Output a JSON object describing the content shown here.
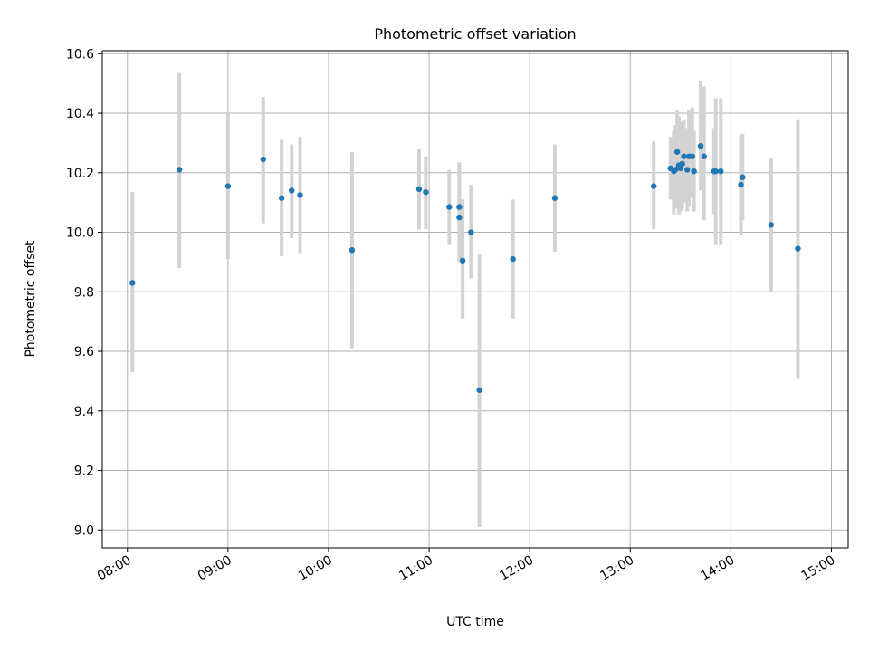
{
  "chart_data": {
    "type": "scatter",
    "title": "Photometric offset variation",
    "xlabel": "UTC time",
    "ylabel": "Photometric offset",
    "grid": true,
    "xlim": [
      465,
      910
    ],
    "ylim": [
      8.94,
      10.61
    ],
    "x_tick_minutes": [
      480,
      540,
      600,
      660,
      720,
      780,
      840,
      900
    ],
    "x_tick_labels": [
      "08:00",
      "09:00",
      "10:00",
      "11:00",
      "12:00",
      "13:00",
      "14:00",
      "15:00"
    ],
    "y_ticks": [
      9.0,
      9.2,
      9.4,
      9.6,
      9.8,
      10.0,
      10.2,
      10.4,
      10.6
    ],
    "y_tick_labels": [
      "9.0",
      "9.2",
      "9.4",
      "9.6",
      "9.8",
      "10.0",
      "10.2",
      "10.4",
      "10.6"
    ],
    "point_color": "#1f77b4",
    "errorbar_color": "#d3d3d3",
    "series": [
      {
        "name": "offset",
        "x_minutes": [
          483,
          511,
          540,
          561,
          572,
          578,
          583,
          614,
          654,
          658,
          672,
          678,
          678,
          680,
          685,
          690,
          710,
          735,
          794,
          804,
          806,
          807,
          808,
          809,
          809,
          810,
          811,
          812,
          814,
          815,
          817,
          818,
          822,
          824,
          830,
          831,
          834,
          846,
          847,
          864,
          880
        ],
        "y": [
          9.83,
          10.21,
          10.155,
          10.245,
          10.115,
          10.14,
          10.125,
          9.94,
          10.145,
          10.135,
          10.085,
          10.05,
          10.085,
          9.905,
          10.0,
          9.47,
          9.91,
          10.115,
          10.155,
          10.215,
          10.205,
          10.21,
          10.27,
          10.22,
          10.225,
          10.215,
          10.23,
          10.255,
          10.21,
          10.255,
          10.255,
          10.205,
          10.29,
          10.255,
          10.205,
          10.205,
          10.205,
          10.16,
          10.185,
          10.025,
          9.945
        ],
        "y_low": [
          9.53,
          9.88,
          9.91,
          10.03,
          9.92,
          9.98,
          9.93,
          9.61,
          10.01,
          10.01,
          9.96,
          9.9,
          9.92,
          9.71,
          9.845,
          9.01,
          9.71,
          9.935,
          10.01,
          10.11,
          10.06,
          10.08,
          10.13,
          10.07,
          10.06,
          10.07,
          10.08,
          10.1,
          10.07,
          10.09,
          10.12,
          10.07,
          10.14,
          10.04,
          10.06,
          9.96,
          9.96,
          9.99,
          10.04,
          9.8,
          9.51
        ],
        "y_high": [
          10.135,
          10.535,
          10.4,
          10.455,
          10.31,
          10.295,
          10.32,
          10.27,
          10.28,
          10.255,
          10.21,
          10.205,
          10.235,
          10.11,
          10.16,
          9.925,
          10.11,
          10.295,
          10.305,
          10.32,
          10.34,
          10.36,
          10.41,
          10.37,
          10.39,
          10.36,
          10.37,
          10.38,
          10.35,
          10.41,
          10.42,
          10.34,
          10.51,
          10.49,
          10.35,
          10.45,
          10.45,
          10.325,
          10.33,
          10.25,
          10.38
        ]
      }
    ]
  }
}
